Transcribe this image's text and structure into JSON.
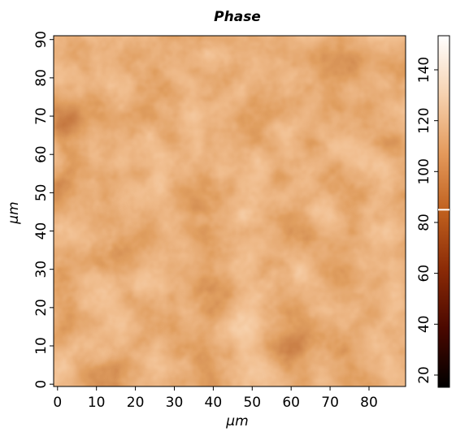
{
  "chart_data": {
    "type": "heatmap",
    "title": "Phase",
    "x_label": "μm",
    "y_label": "μm",
    "xlim": [
      -1,
      89.4
    ],
    "ylim": [
      -0.6,
      91
    ],
    "xticks": [
      0,
      10,
      20,
      30,
      40,
      50,
      60,
      70,
      80
    ],
    "yticks": [
      0,
      10,
      20,
      30,
      40,
      50,
      60,
      70,
      80,
      90
    ],
    "clim": [
      15.2,
      153.4
    ],
    "cticks": [
      20,
      40,
      60,
      80,
      100,
      120,
      140
    ],
    "colorbar_marker": 85,
    "colormap": [
      "#000000",
      "#4a0800",
      "#8a2a06",
      "#c0601e",
      "#e49a5c",
      "#f6d2b0",
      "#ffffff"
    ]
  }
}
